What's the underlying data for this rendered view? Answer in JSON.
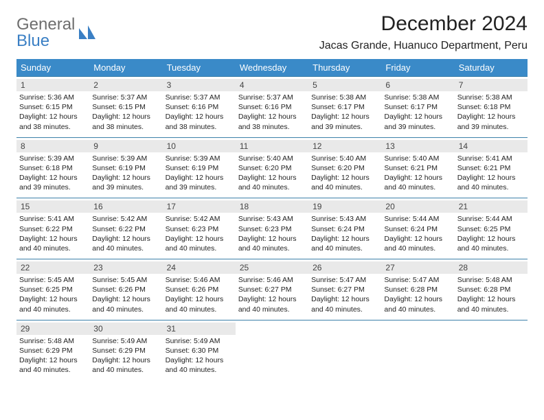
{
  "brand": {
    "part1": "General",
    "part2": "Blue"
  },
  "title": "December 2024",
  "location": "Jacas Grande, Huanuco Department, Peru",
  "colors": {
    "header_bg": "#3a8ac8",
    "row_border": "#3a7fa8",
    "daynum_bg": "#e9e9e9"
  },
  "day_names": [
    "Sunday",
    "Monday",
    "Tuesday",
    "Wednesday",
    "Thursday",
    "Friday",
    "Saturday"
  ],
  "weeks": [
    [
      {
        "n": "1",
        "sr": "5:36 AM",
        "ss": "6:15 PM",
        "dl": "12 hours and 38 minutes."
      },
      {
        "n": "2",
        "sr": "5:37 AM",
        "ss": "6:15 PM",
        "dl": "12 hours and 38 minutes."
      },
      {
        "n": "3",
        "sr": "5:37 AM",
        "ss": "6:16 PM",
        "dl": "12 hours and 38 minutes."
      },
      {
        "n": "4",
        "sr": "5:37 AM",
        "ss": "6:16 PM",
        "dl": "12 hours and 38 minutes."
      },
      {
        "n": "5",
        "sr": "5:38 AM",
        "ss": "6:17 PM",
        "dl": "12 hours and 39 minutes."
      },
      {
        "n": "6",
        "sr": "5:38 AM",
        "ss": "6:17 PM",
        "dl": "12 hours and 39 minutes."
      },
      {
        "n": "7",
        "sr": "5:38 AM",
        "ss": "6:18 PM",
        "dl": "12 hours and 39 minutes."
      }
    ],
    [
      {
        "n": "8",
        "sr": "5:39 AM",
        "ss": "6:18 PM",
        "dl": "12 hours and 39 minutes."
      },
      {
        "n": "9",
        "sr": "5:39 AM",
        "ss": "6:19 PM",
        "dl": "12 hours and 39 minutes."
      },
      {
        "n": "10",
        "sr": "5:39 AM",
        "ss": "6:19 PM",
        "dl": "12 hours and 39 minutes."
      },
      {
        "n": "11",
        "sr": "5:40 AM",
        "ss": "6:20 PM",
        "dl": "12 hours and 40 minutes."
      },
      {
        "n": "12",
        "sr": "5:40 AM",
        "ss": "6:20 PM",
        "dl": "12 hours and 40 minutes."
      },
      {
        "n": "13",
        "sr": "5:40 AM",
        "ss": "6:21 PM",
        "dl": "12 hours and 40 minutes."
      },
      {
        "n": "14",
        "sr": "5:41 AM",
        "ss": "6:21 PM",
        "dl": "12 hours and 40 minutes."
      }
    ],
    [
      {
        "n": "15",
        "sr": "5:41 AM",
        "ss": "6:22 PM",
        "dl": "12 hours and 40 minutes."
      },
      {
        "n": "16",
        "sr": "5:42 AM",
        "ss": "6:22 PM",
        "dl": "12 hours and 40 minutes."
      },
      {
        "n": "17",
        "sr": "5:42 AM",
        "ss": "6:23 PM",
        "dl": "12 hours and 40 minutes."
      },
      {
        "n": "18",
        "sr": "5:43 AM",
        "ss": "6:23 PM",
        "dl": "12 hours and 40 minutes."
      },
      {
        "n": "19",
        "sr": "5:43 AM",
        "ss": "6:24 PM",
        "dl": "12 hours and 40 minutes."
      },
      {
        "n": "20",
        "sr": "5:44 AM",
        "ss": "6:24 PM",
        "dl": "12 hours and 40 minutes."
      },
      {
        "n": "21",
        "sr": "5:44 AM",
        "ss": "6:25 PM",
        "dl": "12 hours and 40 minutes."
      }
    ],
    [
      {
        "n": "22",
        "sr": "5:45 AM",
        "ss": "6:25 PM",
        "dl": "12 hours and 40 minutes."
      },
      {
        "n": "23",
        "sr": "5:45 AM",
        "ss": "6:26 PM",
        "dl": "12 hours and 40 minutes."
      },
      {
        "n": "24",
        "sr": "5:46 AM",
        "ss": "6:26 PM",
        "dl": "12 hours and 40 minutes."
      },
      {
        "n": "25",
        "sr": "5:46 AM",
        "ss": "6:27 PM",
        "dl": "12 hours and 40 minutes."
      },
      {
        "n": "26",
        "sr": "5:47 AM",
        "ss": "6:27 PM",
        "dl": "12 hours and 40 minutes."
      },
      {
        "n": "27",
        "sr": "5:47 AM",
        "ss": "6:28 PM",
        "dl": "12 hours and 40 minutes."
      },
      {
        "n": "28",
        "sr": "5:48 AM",
        "ss": "6:28 PM",
        "dl": "12 hours and 40 minutes."
      }
    ],
    [
      {
        "n": "29",
        "sr": "5:48 AM",
        "ss": "6:29 PM",
        "dl": "12 hours and 40 minutes."
      },
      {
        "n": "30",
        "sr": "5:49 AM",
        "ss": "6:29 PM",
        "dl": "12 hours and 40 minutes."
      },
      {
        "n": "31",
        "sr": "5:49 AM",
        "ss": "6:30 PM",
        "dl": "12 hours and 40 minutes."
      },
      null,
      null,
      null,
      null
    ]
  ],
  "labels": {
    "sunrise": "Sunrise: ",
    "sunset": "Sunset: ",
    "daylight": "Daylight: "
  }
}
